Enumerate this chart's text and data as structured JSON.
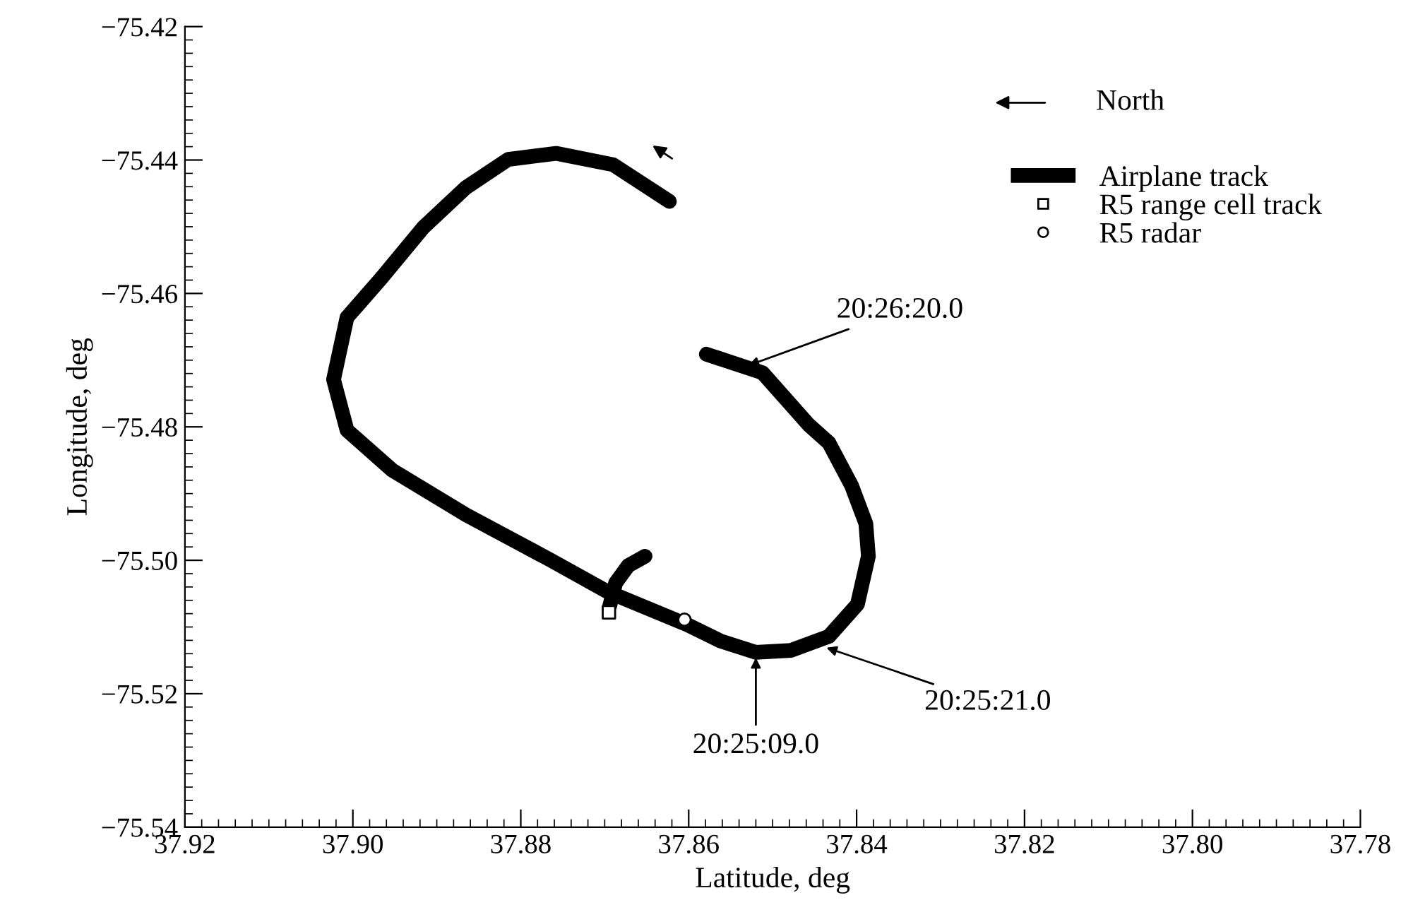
{
  "chart_data": {
    "type": "line",
    "xlabel": "Latitude, deg",
    "ylabel": "Longitude, deg",
    "xlim": [
      37.92,
      37.78
    ],
    "ylim": [
      -75.54,
      -75.42
    ],
    "xticks": [
      37.92,
      {
        "value": 37.9,
        "label": "37.90"
      },
      37.88,
      37.86,
      37.84,
      37.82,
      {
        "value": 37.8,
        "label": "37.80"
      },
      37.78
    ],
    "yticks": [
      -75.54,
      -75.52,
      {
        "value": -75.5,
        "label": "−75.50"
      },
      -75.48,
      -75.46,
      -75.44,
      -75.42
    ],
    "grid": false,
    "legend": "top right",
    "series": [
      {
        "name": "Airplane track",
        "color": "#000000",
        "marker": "none",
        "line_style": "solid",
        "x": [
          37.8623,
          37.869,
          37.8758,
          37.8815,
          37.8865,
          37.8916,
          37.8966,
          37.9007,
          37.9023,
          37.9007,
          37.8953,
          37.8865,
          37.8764,
          37.8697,
          37.8601,
          37.8562,
          37.852,
          37.8478,
          37.8433,
          37.8399,
          37.8386,
          37.8389,
          37.8406,
          37.8433,
          37.8457,
          37.8512,
          37.8579,
          null,
          37.8652,
          37.8672,
          37.8687,
          37.8694
        ],
        "values": [
          -75.4462,
          -75.4407,
          -75.439,
          -75.4399,
          -75.4441,
          -75.4501,
          -75.4577,
          -75.4636,
          -75.4729,
          -75.4805,
          -75.4865,
          -75.4932,
          -75.5,
          -75.5047,
          -75.5097,
          -75.5121,
          -75.5138,
          -75.5135,
          -75.5114,
          -75.5066,
          -75.4994,
          -75.4945,
          -75.4888,
          -75.4824,
          -75.4797,
          -75.4719,
          -75.4691,
          null,
          -75.4994,
          -75.5008,
          -75.5034,
          -75.5068
        ]
      },
      {
        "name": "R5 range cell track",
        "type": "scatter",
        "color": "#000000",
        "marker": "square",
        "x": [
          37.8695
        ],
        "values": [
          -75.5078
        ]
      },
      {
        "name": "R5 radar",
        "type": "scatter",
        "color": "#000000",
        "marker": "circle",
        "x": [
          37.8605
        ],
        "values": [
          -75.5089
        ]
      }
    ],
    "annotations": [
      "North",
      {
        "text": "20:26:20.0",
        "x": 37.8529,
        "y": -75.4708
      },
      {
        "text": "20:25:21.0",
        "x": 37.8436,
        "y": -75.5131
      },
      {
        "text": "20:25:09.0",
        "x": 37.852,
        "y": -75.5146
      }
    ]
  }
}
